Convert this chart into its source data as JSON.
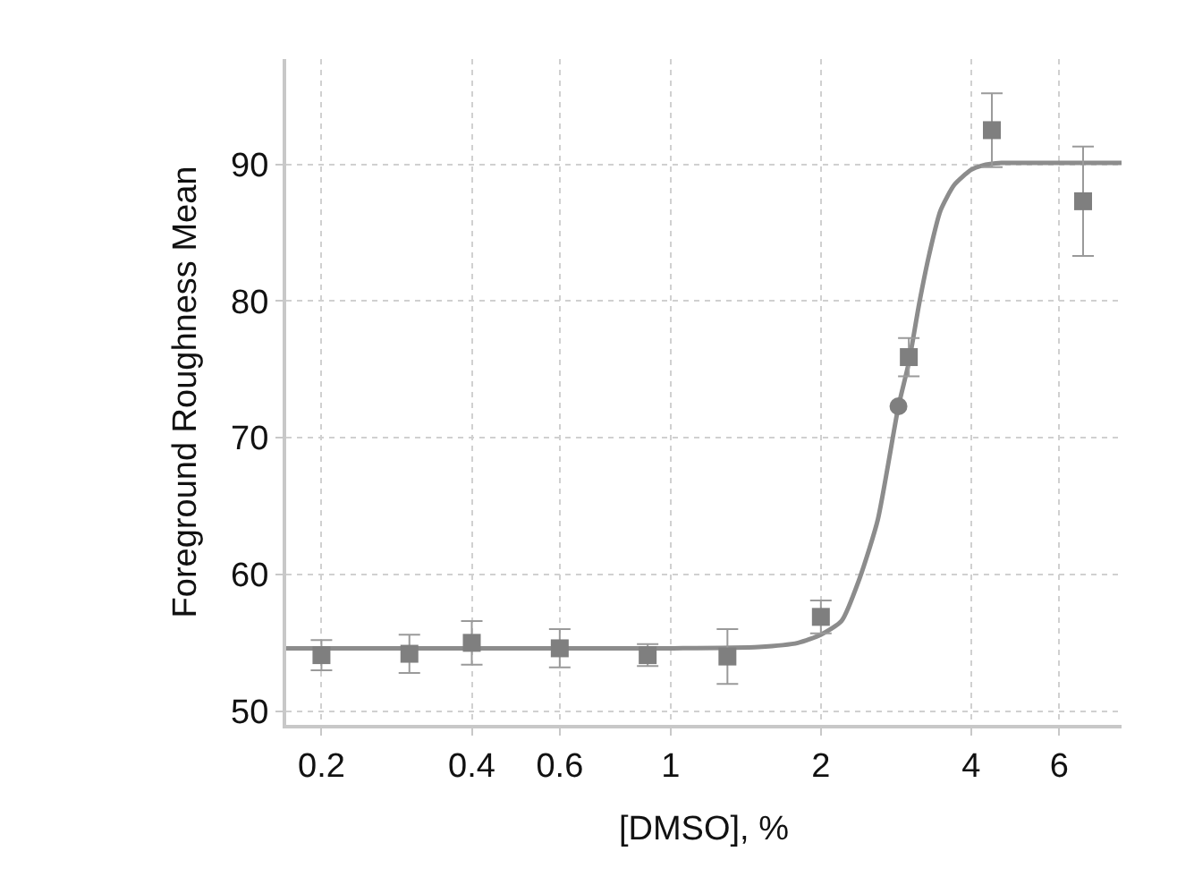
{
  "chart_data": {
    "type": "scatter",
    "xlabel": "[DMSO], %",
    "ylabel": "Foreground Roughness Mean",
    "log": "x",
    "xlim": [
      0.17,
      8
    ],
    "xticks": [
      0.2,
      0.4,
      0.6,
      1,
      2,
      4,
      6
    ],
    "ylim": [
      49,
      97.7
    ],
    "yticks": [
      50,
      60,
      70,
      80,
      90
    ],
    "grid": true,
    "series": [
      {
        "type": "line",
        "color": "#8c8c8c",
        "marker": "none",
        "line_style": "solid",
        "x": [
          0.17,
          1.0,
          1.5,
          1.8,
          2.0,
          2.2,
          2.39,
          2.6,
          2.86,
          3.0,
          3.15,
          3.3,
          3.47,
          3.7,
          4.0,
          4.2,
          4.6,
          5.2,
          6.0,
          8.0
        ],
        "values": [
          54.6,
          54.6,
          54.7,
          55.0,
          55.6,
          56.6,
          59.7,
          64.0,
          72.3,
          75.5,
          79.9,
          83.5,
          86.6,
          88.5,
          89.6,
          89.9,
          90.1,
          90.1,
          90.1,
          90.1
        ]
      },
      {
        "color": "#7f7f7f",
        "marker": "square",
        "x": [
          0.2,
          0.3,
          0.4,
          0.6,
          0.9,
          1.3,
          2.0,
          3.0,
          4.4,
          6.7
        ],
        "values": [
          54.1,
          54.2,
          55.0,
          54.6,
          54.1,
          54.0,
          56.9,
          75.9,
          92.5,
          87.3
        ],
        "errors": [
          1.1,
          1.4,
          1.6,
          1.4,
          0.8,
          2.0,
          1.2,
          1.4,
          2.7,
          4.0
        ]
      },
      {
        "color": "#7f7f7f",
        "marker": "circle",
        "x": [
          2.86
        ],
        "values": [
          72.3
        ]
      }
    ]
  }
}
